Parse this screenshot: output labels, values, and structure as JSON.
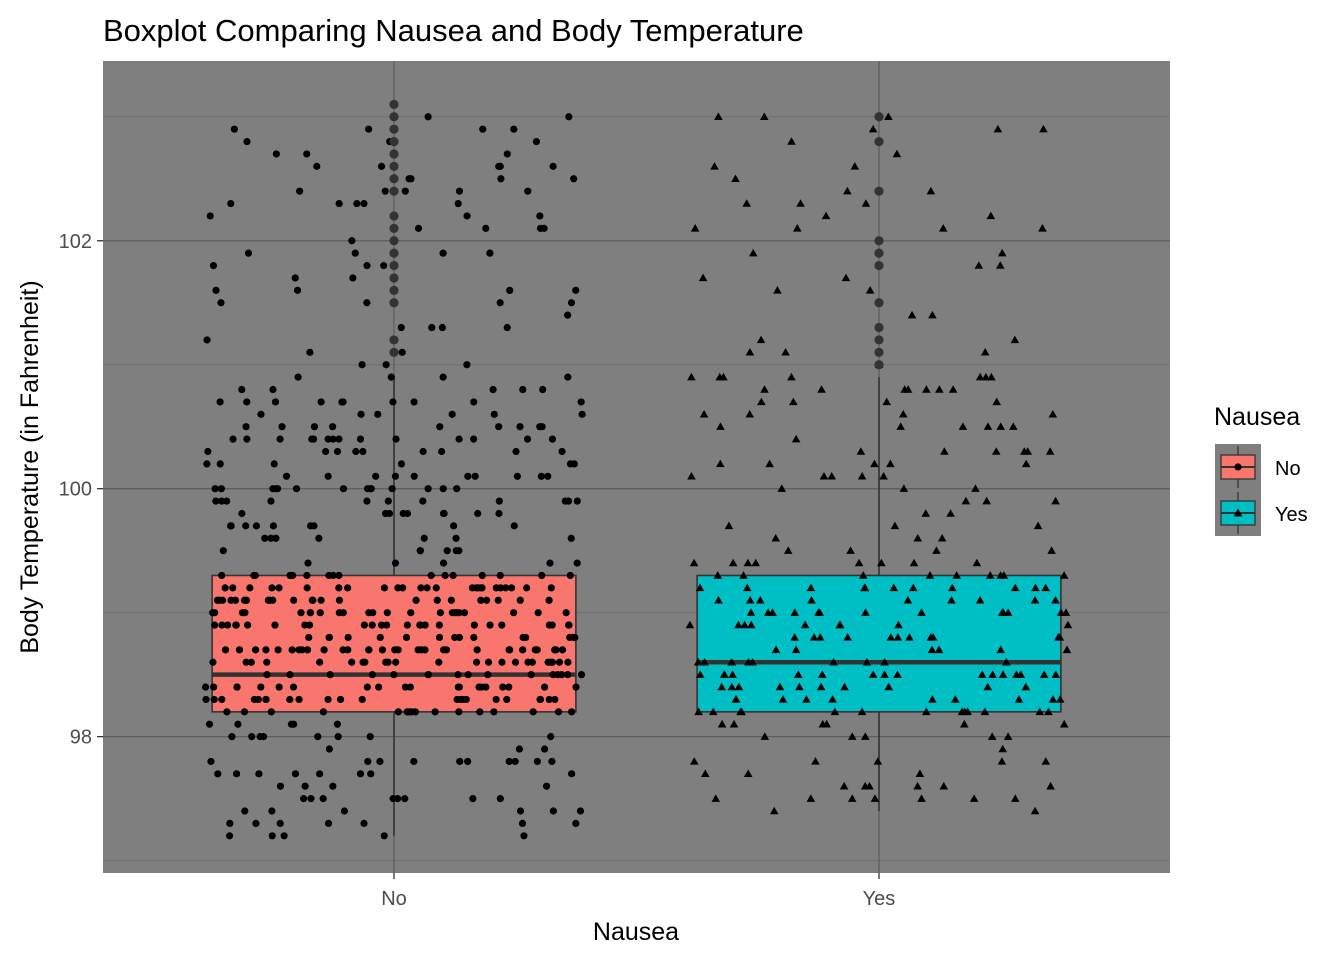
{
  "chart_data": {
    "type": "boxplot",
    "title": "Boxplot Comparing Nausea and Body Temperature",
    "xlabel": "Nausea",
    "ylabel": "Body Temperature (in Fahrenheit)",
    "categories": [
      "No",
      "Yes"
    ],
    "ylim": [
      96.9,
      103.45
    ],
    "y_ticks": [
      98,
      100,
      102
    ],
    "grid": true,
    "legend": {
      "title": "Nausea",
      "position": "right",
      "entries": [
        {
          "label": "No",
          "color": "#F8766D",
          "shape": "circle"
        },
        {
          "label": "Yes",
          "color": "#00BFC4",
          "shape": "triangle"
        }
      ]
    },
    "colors": {
      "panel": "#7f7f7f",
      "grid_major": "#5e5e5e",
      "grid_minor": "#707070",
      "points": "#000000",
      "outliers": "#333333",
      "box_outline": "#333333"
    },
    "boxes": [
      {
        "category": "No",
        "min": 97.2,
        "q1": 98.2,
        "median": 98.5,
        "q3": 99.3,
        "max": 100.9,
        "outliers": [
          101.1,
          101.2,
          101.5,
          101.6,
          101.7,
          101.8,
          101.9,
          102.0,
          102.1,
          102.2,
          102.4,
          102.5,
          102.6,
          102.7,
          102.8,
          102.9,
          103.0,
          103.1
        ]
      },
      {
        "category": "Yes",
        "min": 97.4,
        "q1": 98.2,
        "median": 98.6,
        "q3": 99.3,
        "max": 100.9,
        "outliers": [
          101.0,
          101.1,
          101.2,
          101.3,
          101.5,
          101.8,
          101.9,
          102.0,
          102.4,
          102.8,
          103.0
        ]
      }
    ],
    "jitter_points": {
      "No": {
        "count": 520,
        "shape": "circle"
      },
      "Yes": {
        "count": 270,
        "shape": "triangle"
      }
    }
  }
}
